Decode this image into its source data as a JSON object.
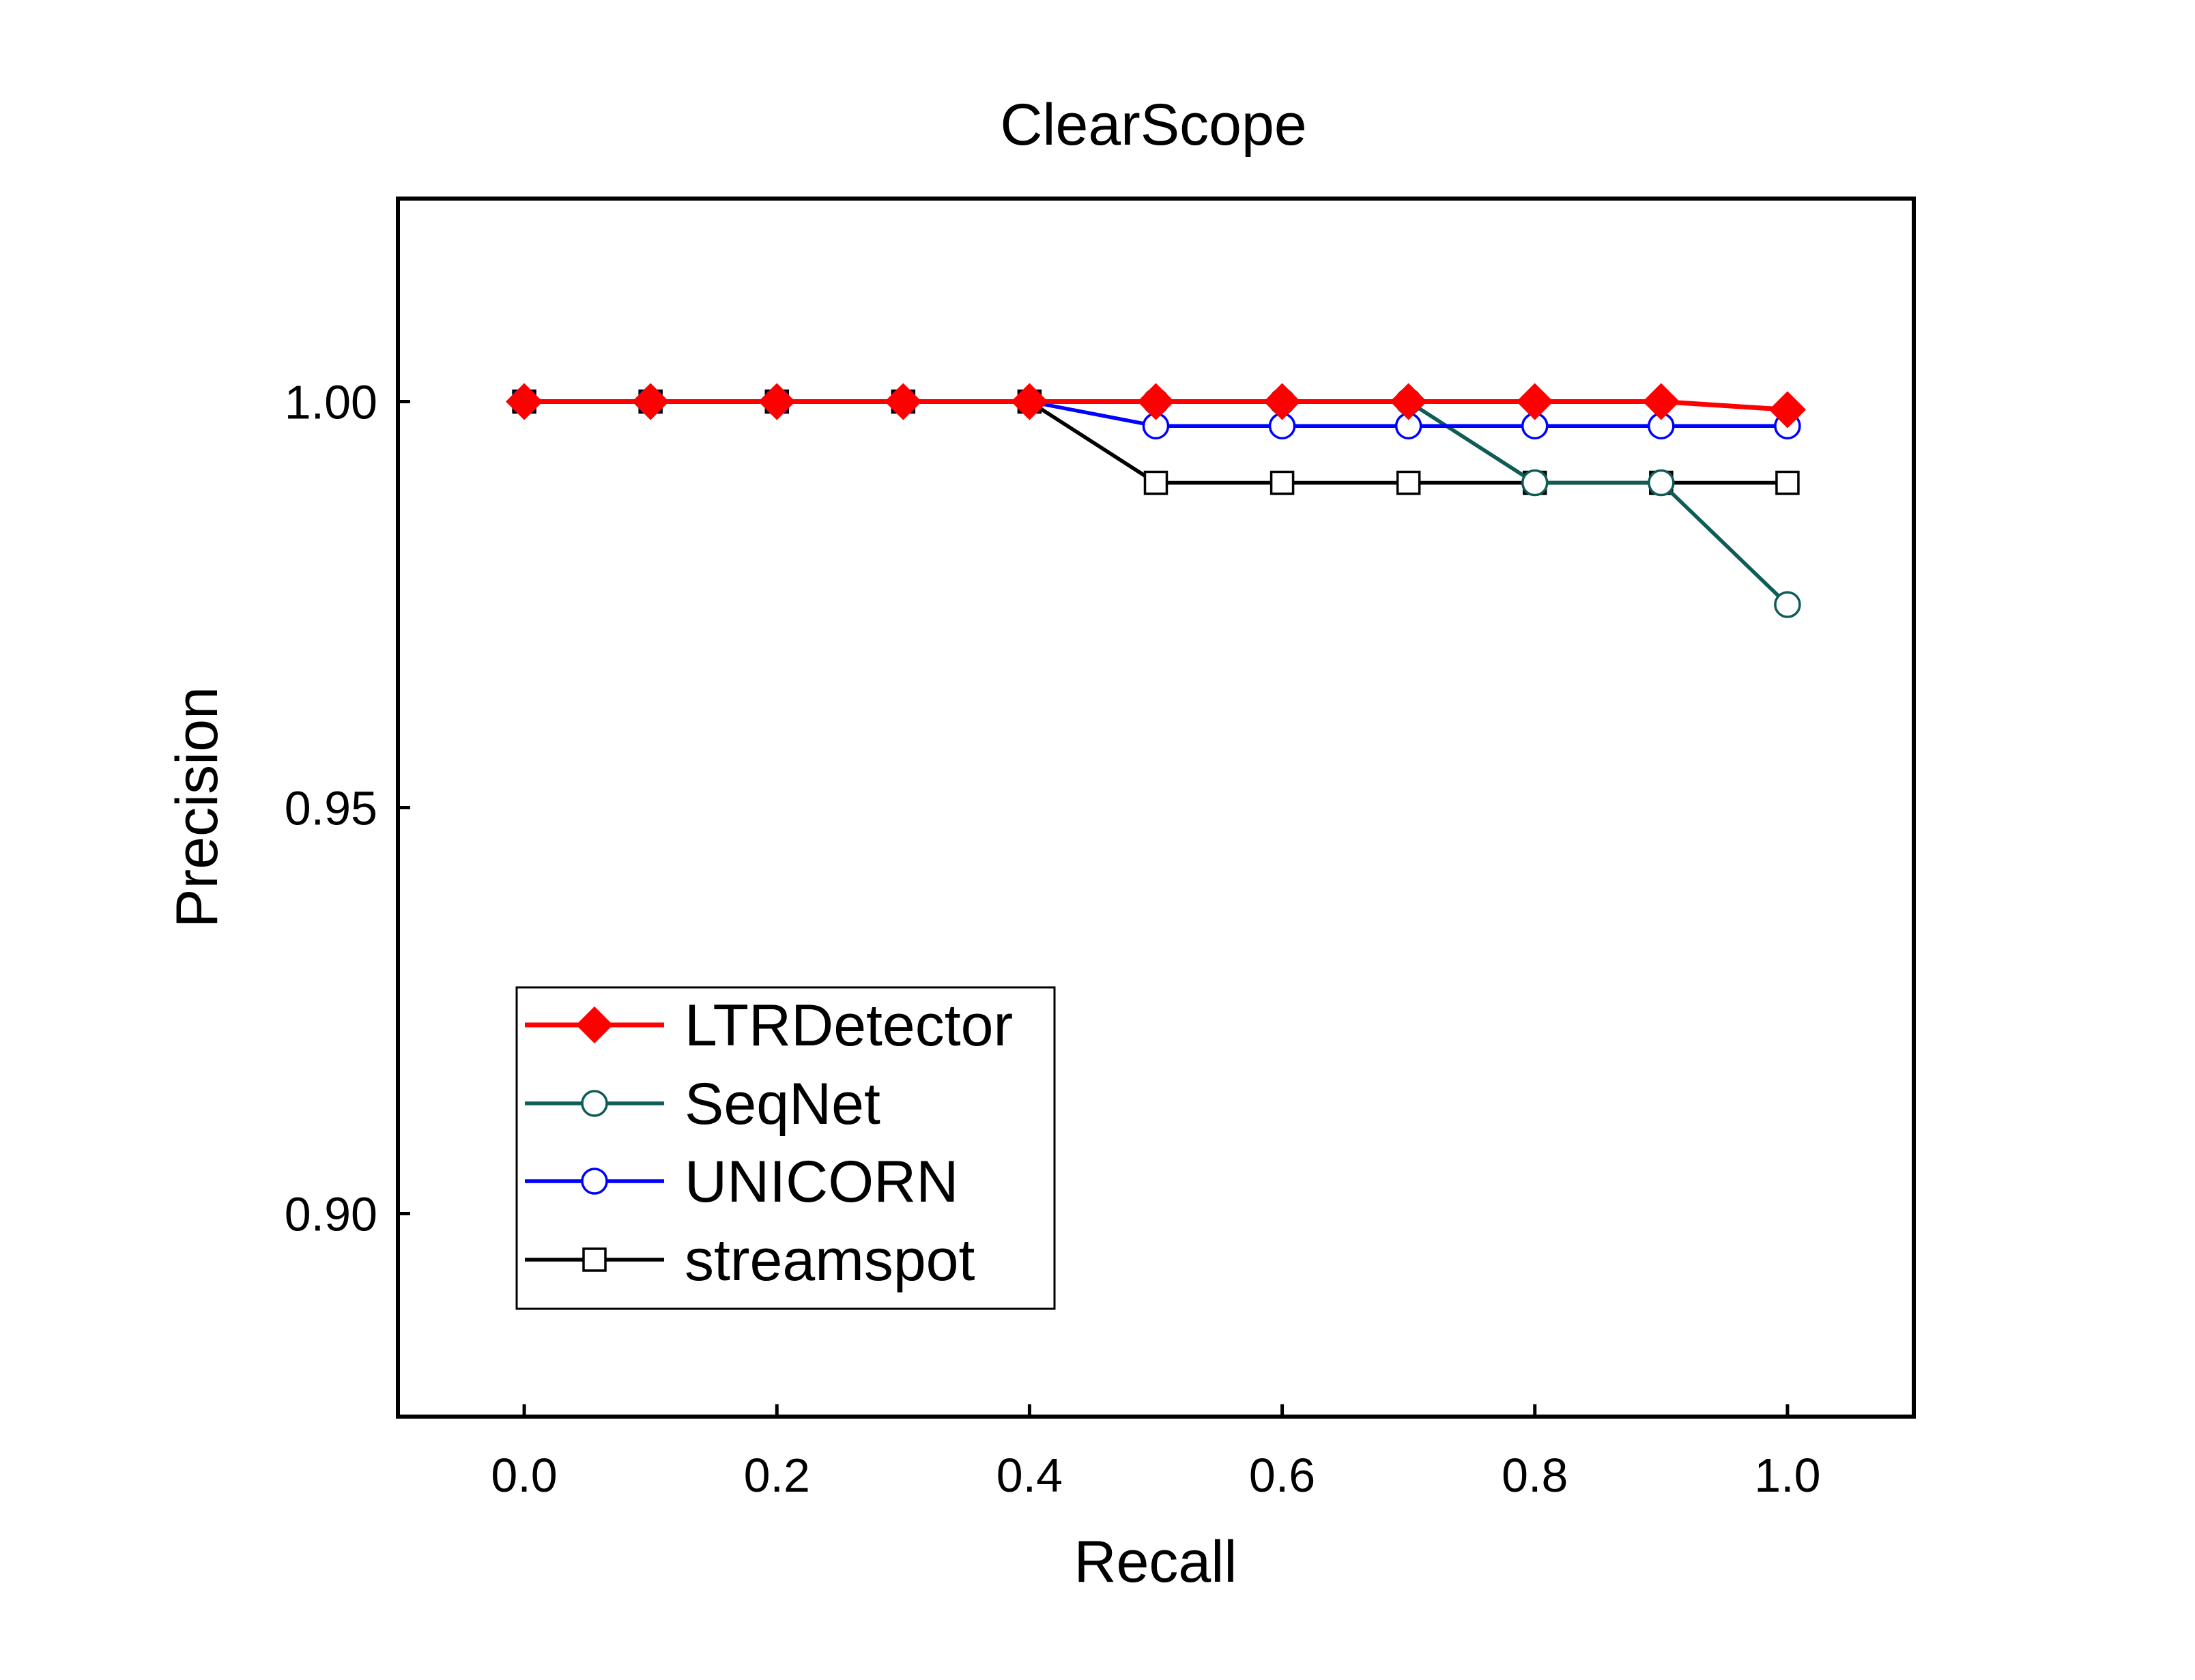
{
  "chart_data": {
    "type": "line",
    "title": "ClearScope",
    "xlabel": "Recall",
    "ylabel": "Precision",
    "xlim": [
      -0.1,
      1.1
    ],
    "ylim": [
      0.875,
      1.025
    ],
    "xticks": [
      0.0,
      0.2,
      0.4,
      0.6,
      0.8,
      1.0
    ],
    "xtick_labels": [
      "0.0",
      "0.2",
      "0.4",
      "0.6",
      "0.8",
      "1.0"
    ],
    "yticks": [
      0.9,
      0.95,
      1.0
    ],
    "ytick_labels": [
      "0.90",
      "0.95",
      "1.00"
    ],
    "x": [
      0.0,
      0.1,
      0.2,
      0.3,
      0.4,
      0.5,
      0.6,
      0.7,
      0.8,
      0.9,
      1.0
    ],
    "legend_position": "lower-left",
    "grid": false,
    "series": [
      {
        "name": "LTRDetector",
        "color": "#ff0000",
        "marker": "diamond",
        "marker_fill": "#ff0000",
        "values": [
          1.0,
          1.0,
          1.0,
          1.0,
          1.0,
          1.0,
          1.0,
          1.0,
          1.0,
          1.0,
          0.999
        ]
      },
      {
        "name": "SeqNet",
        "color": "#0f5c57",
        "marker": "circle",
        "marker_fill": "#ffffff",
        "values": [
          1.0,
          1.0,
          1.0,
          1.0,
          1.0,
          1.0,
          1.0,
          1.0,
          0.99,
          0.99,
          0.975
        ]
      },
      {
        "name": "UNICORN",
        "color": "#0000ff",
        "marker": "circle",
        "marker_fill": "#ffffff",
        "values": [
          1.0,
          1.0,
          1.0,
          1.0,
          1.0,
          0.997,
          0.997,
          0.997,
          0.997,
          0.997,
          0.997
        ]
      },
      {
        "name": "streamspot",
        "color": "#000000",
        "marker": "square",
        "marker_fill": "#ffffff",
        "values": [
          1.0,
          1.0,
          1.0,
          1.0,
          1.0,
          0.99,
          0.99,
          0.99,
          0.99,
          0.99,
          0.99
        ]
      }
    ],
    "draw_order": [
      3,
      1,
      2,
      0
    ]
  }
}
